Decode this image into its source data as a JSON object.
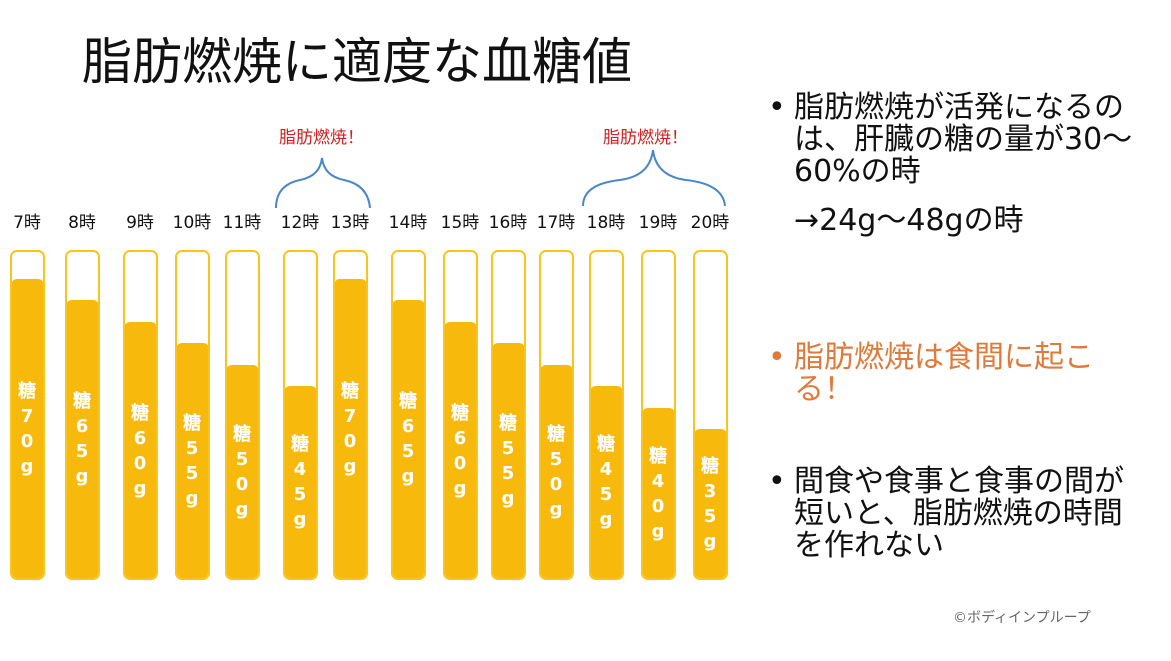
{
  "title": "脂肪燃焼に適度な血糖値",
  "callouts": {
    "left": "脂肪燃焼！",
    "right": "脂肪燃焼！"
  },
  "hours": [
    {
      "label": "7時",
      "sugar": 70,
      "text": "糖\n7\n0\ng"
    },
    {
      "label": "8時",
      "sugar": 65,
      "text": "糖\n6\n5\ng"
    },
    {
      "label": "9時",
      "sugar": 60,
      "text": "糖\n6\n0\ng"
    },
    {
      "label": "10時",
      "sugar": 55,
      "text": "糖\n5\n5\ng"
    },
    {
      "label": "11時",
      "sugar": 50,
      "text": "糖\n5\n0\ng"
    },
    {
      "label": "12時",
      "sugar": 45,
      "text": "糖\n4\n5\ng"
    },
    {
      "label": "13時",
      "sugar": 70,
      "text": "糖\n7\n0\ng"
    },
    {
      "label": "14時",
      "sugar": 65,
      "text": "糖\n6\n5\ng"
    },
    {
      "label": "15時",
      "sugar": 60,
      "text": "糖\n6\n0\ng"
    },
    {
      "label": "16時",
      "sugar": 55,
      "text": "糖\n5\n5\ng"
    },
    {
      "label": "17時",
      "sugar": 50,
      "text": "糖\n5\n0\ng"
    },
    {
      "label": "18時",
      "sugar": 45,
      "text": "糖\n4\n5\ng"
    },
    {
      "label": "19時",
      "sugar": 40,
      "text": "糖\n4\n0\ng"
    },
    {
      "label": "20時",
      "sugar": 35,
      "text": "糖\n3\n5\ng"
    }
  ],
  "bullets": {
    "b1": "脂肪燃焼が活発になるのは、肝臓の糖の量が30〜60%の時",
    "b1_sub": "→24g〜48gの時",
    "b2": "脂肪燃焼は食間に起こる！",
    "b3": "間食や食事と食事の間が短いと、脂肪燃焼の時間を作れない",
    "dot": "•"
  },
  "colors": {
    "fill": "#f7ba0c",
    "tube_border": "#f7c51e",
    "callout": "#d22020",
    "brace": "#4a86c8",
    "highlight": "#e07a3a"
  },
  "copyright": "©ボディインプループ"
}
